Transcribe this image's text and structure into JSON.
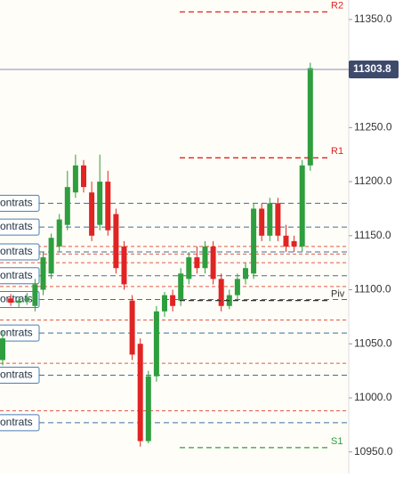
{
  "chart_data": {
    "type": "candlestick",
    "ylim": [
      10930,
      11368
    ],
    "yticks": [
      {
        "value": 11350,
        "label": "11350.0"
      },
      {
        "value": 11300,
        "label": "11300.0"
      },
      {
        "value": 11250,
        "label": "11250.0"
      },
      {
        "value": 11200,
        "label": "11200.0"
      },
      {
        "value": 11150,
        "label": "11150.0"
      },
      {
        "value": 11100,
        "label": "11100.0"
      },
      {
        "value": 11050,
        "label": "11050.0"
      },
      {
        "value": 11000,
        "label": "11000.0"
      },
      {
        "value": 10950,
        "label": "10950.0"
      }
    ],
    "up_color": "#2e9e3e",
    "down_color": "#e02424",
    "open": [
      11035,
      11092,
      11088,
      11090,
      11085,
      11100,
      11115,
      11140,
      11160,
      11190,
      11215,
      11190,
      11160,
      11200,
      11170,
      11140,
      11090,
      11050,
      10960,
      11020,
      11080,
      11095,
      11090,
      11110,
      11130,
      11120,
      11140,
      11110,
      11085,
      11095,
      11110,
      11115,
      11175,
      11150,
      11180,
      11150,
      11145,
      11140,
      11215
    ],
    "high": [
      11062,
      11096,
      11094,
      11097,
      11110,
      11135,
      11152,
      11170,
      11210,
      11225,
      11220,
      11200,
      11225,
      11210,
      11175,
      11145,
      11095,
      11055,
      11025,
      11085,
      11098,
      11100,
      11120,
      11135,
      11140,
      11145,
      11145,
      11115,
      11100,
      11115,
      11125,
      11180,
      11180,
      11185,
      11185,
      11160,
      11150,
      11220,
      11310
    ],
    "low": [
      11030,
      11085,
      11084,
      11086,
      11080,
      11095,
      11110,
      11135,
      11155,
      11185,
      11190,
      11145,
      11155,
      11150,
      11115,
      11100,
      11035,
      10955,
      10958,
      11015,
      11075,
      11080,
      11085,
      11105,
      11115,
      11115,
      11105,
      11080,
      11082,
      11090,
      11105,
      11110,
      11145,
      11145,
      11145,
      11135,
      11135,
      11135,
      11210
    ],
    "close": [
      11055,
      11088,
      11090,
      11092,
      11105,
      11130,
      11148,
      11165,
      11195,
      11215,
      11195,
      11150,
      11200,
      11155,
      11120,
      11105,
      11040,
      10960,
      11020,
      11080,
      11095,
      11085,
      11115,
      11130,
      11120,
      11140,
      11110,
      11085,
      11095,
      11110,
      11120,
      11175,
      11150,
      11180,
      11150,
      11140,
      11140,
      11215,
      11305
    ],
    "last_price": {
      "value": 11303.8,
      "label": "11303.8"
    },
    "pivots": [
      {
        "label": "R2",
        "value": 11357,
        "color": "#e02424"
      },
      {
        "label": "R1",
        "value": 11222,
        "color": "#e02424"
      },
      {
        "label": "Piv",
        "value": 11090,
        "color": "#333333"
      },
      {
        "label": "S1",
        "value": 10954,
        "color": "#2e9e3e"
      }
    ],
    "orders": [
      {
        "label": "ontrats",
        "value": 11180
      },
      {
        "label": "ontrats",
        "value": 11158
      },
      {
        "label": "ontrats",
        "value": 11135
      },
      {
        "label": "ontrats",
        "value": 11113
      },
      {
        "label": "ontrats",
        "value": 11091
      },
      {
        "label": "ontrats",
        "value": 11060
      },
      {
        "label": "ontrats",
        "value": 11021
      },
      {
        "label": "ontrats",
        "value": 10977
      }
    ],
    "dashed_levels": [
      11140,
      11133,
      11125,
      11103,
      11072,
      11032,
      10988
    ]
  }
}
